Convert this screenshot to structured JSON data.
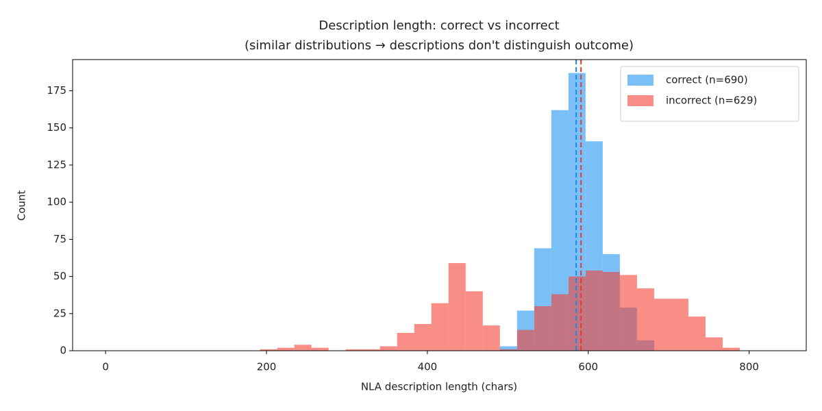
{
  "chart_data": {
    "type": "histogram",
    "title": "Description length: correct vs incorrect",
    "subtitle": "(similar distributions → descriptions don't distinguish outcome)",
    "x_label": "NLA description length (chars)",
    "y_label": "Count",
    "bins": [
      192,
      213.3,
      234.6,
      255.9,
      277.2,
      298.5,
      319.8,
      341.1,
      362.4,
      383.7,
      405,
      426.3,
      447.6,
      468.9,
      490.2,
      511.5,
      532.8,
      554.1,
      575.4,
      596.7,
      618,
      639.3,
      660.6,
      681.9,
      703.2,
      724.5,
      745.8,
      767.1,
      788.4
    ],
    "series": [
      {
        "name": "correct (n=690)",
        "color": "#7abff5",
        "mean_color": "#1e88e5",
        "mean": 585,
        "values": [
          0,
          0,
          0,
          0,
          0,
          0,
          0,
          0,
          0,
          0,
          0,
          0,
          0,
          0,
          3,
          27,
          69,
          162,
          187,
          141,
          65,
          29,
          7,
          0,
          0,
          0,
          0,
          0
        ]
      },
      {
        "name": "incorrect (n=629)",
        "color": "#f44336",
        "mean_color": "#e53935",
        "mean": 591,
        "opacity": 0.6,
        "values": [
          1,
          2,
          4,
          2,
          0,
          1,
          1,
          3,
          12,
          18,
          32,
          59,
          40,
          17,
          1,
          14,
          30,
          38,
          50,
          54,
          53,
          51,
          42,
          35,
          35,
          23,
          9,
          2
        ]
      }
    ],
    "xlim": [
      -41,
      871
    ],
    "ylim": [
      0,
      196
    ],
    "xticks": [
      0,
      200,
      400,
      600,
      800
    ],
    "yticks": [
      0,
      25,
      50,
      75,
      100,
      125,
      150,
      175
    ],
    "legend": "upper right"
  }
}
